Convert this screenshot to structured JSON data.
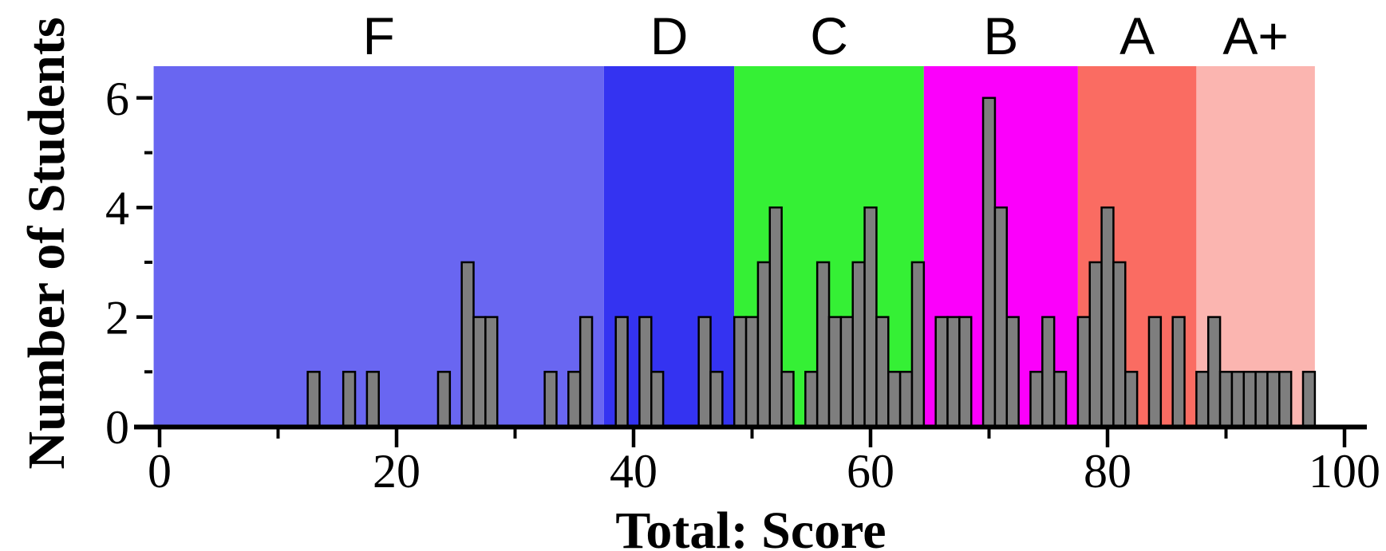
{
  "chart_data": {
    "type": "bar",
    "title": "",
    "xlabel": "Total: Score",
    "ylabel": "Number of Students",
    "grid": false,
    "legend": null,
    "xlim": [
      -0.6,
      101.9
    ],
    "ylim": [
      0,
      6.6
    ],
    "bin_width": 1,
    "x": [
      13,
      16,
      18,
      24,
      26,
      27,
      28,
      33,
      35,
      36,
      39,
      41,
      42,
      46,
      47,
      49,
      50,
      51,
      52,
      53,
      55,
      56,
      57,
      58,
      59,
      60,
      61,
      62,
      63,
      64,
      66,
      67,
      68,
      70,
      71,
      72,
      74,
      75,
      76,
      78,
      79,
      80,
      81,
      82,
      84,
      86,
      88,
      89,
      90,
      91,
      92,
      93,
      94,
      95,
      97
    ],
    "counts": [
      1,
      1,
      1,
      1,
      3,
      2,
      2,
      1,
      1,
      2,
      2,
      2,
      1,
      2,
      1,
      2,
      2,
      3,
      4,
      1,
      1,
      3,
      2,
      2,
      3,
      4,
      2,
      1,
      1,
      3,
      2,
      2,
      2,
      6,
      4,
      2,
      1,
      2,
      1,
      2,
      3,
      4,
      3,
      1,
      2,
      2,
      1,
      2,
      1,
      1,
      1,
      1,
      1,
      1,
      1
    ],
    "x_ticks_major": [
      0,
      20,
      40,
      60,
      80,
      100
    ],
    "x_ticks_minor": [
      10,
      30,
      50,
      70,
      90
    ],
    "y_ticks_major": [
      0,
      2,
      4,
      6
    ],
    "y_ticks_minor": [
      1,
      3,
      5
    ],
    "grade_bands": [
      {
        "label": "F",
        "start": -0.5,
        "end": 37.5,
        "color": "#6966F1"
      },
      {
        "label": "D",
        "start": 37.5,
        "end": 48.5,
        "color": "#3433F1"
      },
      {
        "label": "C",
        "start": 48.5,
        "end": 64.5,
        "color": "#35F035"
      },
      {
        "label": "B",
        "start": 64.5,
        "end": 77.5,
        "color": "#FB00FB"
      },
      {
        "label": "A",
        "start": 77.5,
        "end": 87.5,
        "color": "#FA6C62"
      },
      {
        "label": "A+",
        "start": 87.5,
        "end": 97.5,
        "color": "#FBB5B0"
      }
    ],
    "colors": {
      "bar_fill": "#7E7E7E",
      "bar_stroke": "#000000",
      "axis": "#000000",
      "background": "#FFFFFF"
    }
  }
}
